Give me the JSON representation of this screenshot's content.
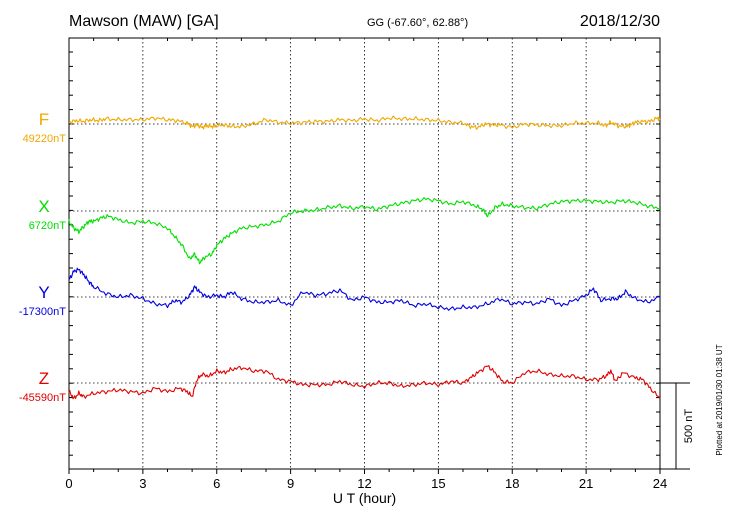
{
  "header": {
    "station": "Mawson (MAW)  [GA]",
    "coords": "GG (-67.60°,  62.88°)",
    "date": "2018/12/30"
  },
  "chart_data": {
    "type": "line",
    "xlabel": "U T (hour)",
    "x_ticks": [
      "0",
      "3",
      "6",
      "9",
      "12",
      "15",
      "18",
      "21",
      "24"
    ],
    "xlim": [
      0,
      24
    ],
    "grid": true,
    "scale_bar": "500 nT",
    "plotted_note": "Plotted at 2019/01/30 01:38 UT",
    "series": [
      {
        "name": "F",
        "baseline": "49220nT",
        "color": "#f0a800",
        "x": [
          0,
          0.3,
          0.6,
          0.9,
          1.2,
          1.5,
          2,
          2.5,
          3,
          3.5,
          4,
          4.4,
          4.8,
          5,
          5.2,
          5.4,
          5.6,
          5.8,
          6,
          6.3,
          6.6,
          7,
          7.5,
          8,
          8.5,
          9,
          9.5,
          10,
          10.5,
          11,
          11.5,
          12,
          12.5,
          13,
          13.5,
          14,
          14.5,
          15,
          15.5,
          16,
          16.3,
          16.6,
          16.9,
          17.2,
          17.5,
          18,
          18.5,
          19,
          19.5,
          20,
          20.5,
          21,
          21.5,
          21.8,
          22,
          22.3,
          22.6,
          22.8,
          23,
          23.3,
          23.6,
          23.9,
          24
        ],
        "y": [
          10,
          20,
          15,
          25,
          20,
          30,
          25,
          25,
          25,
          35,
          25,
          20,
          5,
          -15,
          -5,
          -20,
          -10,
          -15,
          -10,
          -5,
          -15,
          -15,
          0,
          25,
          10,
          5,
          10,
          15,
          15,
          25,
          20,
          30,
          20,
          35,
          30,
          30,
          25,
          20,
          10,
          5,
          -15,
          -20,
          0,
          -5,
          -5,
          -20,
          0,
          -5,
          -10,
          -10,
          5,
          5,
          5,
          -10,
          10,
          -10,
          -15,
          -5,
          10,
          15,
          15,
          35,
          30
        ]
      },
      {
        "name": "X",
        "baseline": "6720nT",
        "color": "#00e000",
        "x": [
          0,
          0.2,
          0.4,
          0.6,
          0.8,
          1,
          1.3,
          1.6,
          2,
          2.5,
          3,
          3.5,
          4,
          4.3,
          4.6,
          4.9,
          5.1,
          5.3,
          5.5,
          5.8,
          6,
          6.3,
          6.6,
          7,
          7.5,
          8,
          8.5,
          9,
          9.5,
          10,
          10.5,
          11,
          11.5,
          12,
          12.5,
          13,
          13.5,
          14,
          14.5,
          15,
          15.5,
          16,
          16.5,
          16.8,
          17,
          17.3,
          17.6,
          18,
          18.5,
          19,
          19.5,
          20,
          20.5,
          21,
          21.5,
          22,
          22.5,
          23,
          23.5,
          24
        ],
        "y": [
          -60,
          -100,
          -120,
          -90,
          -60,
          -60,
          -40,
          -30,
          -50,
          -70,
          -60,
          -70,
          -100,
          -150,
          -200,
          -280,
          -250,
          -300,
          -270,
          -250,
          -200,
          -160,
          -130,
          -100,
          -90,
          -80,
          -60,
          -10,
          0,
          5,
          20,
          30,
          15,
          25,
          10,
          30,
          45,
          60,
          70,
          60,
          40,
          55,
          30,
          10,
          -30,
          20,
          40,
          30,
          20,
          15,
          40,
          55,
          60,
          60,
          55,
          50,
          60,
          50,
          30,
          15
        ]
      },
      {
        "name": "Y",
        "baseline": "-17300nT",
        "color": "#0000e0",
        "x": [
          0,
          0.2,
          0.4,
          0.6,
          0.8,
          1,
          1.5,
          2,
          2.5,
          3,
          3.5,
          4,
          4.3,
          4.6,
          4.9,
          5.1,
          5.3,
          5.6,
          6,
          6.3,
          6.6,
          7,
          7.5,
          8,
          8.5,
          9,
          9.5,
          10,
          10.5,
          11,
          11.5,
          12,
          12.5,
          13,
          13.5,
          14,
          14.5,
          15,
          15.5,
          16,
          16.5,
          17,
          17.5,
          18,
          18.5,
          19,
          19.5,
          20,
          20.5,
          21,
          21.3,
          21.6,
          22,
          22.3,
          22.6,
          23,
          23.5,
          24
        ],
        "y": [
          100,
          150,
          160,
          130,
          90,
          60,
          20,
          0,
          10,
          -10,
          -40,
          -50,
          -20,
          -30,
          10,
          60,
          30,
          0,
          10,
          0,
          30,
          -10,
          -30,
          -30,
          -20,
          -50,
          30,
          10,
          20,
          40,
          -20,
          0,
          -30,
          -30,
          -20,
          -50,
          -40,
          -60,
          -70,
          -60,
          -60,
          -40,
          -10,
          -40,
          -30,
          -40,
          -10,
          -50,
          -20,
          10,
          50,
          -20,
          -10,
          -10,
          30,
          -10,
          -30,
          0
        ]
      },
      {
        "name": "Z",
        "baseline": "-45590nT",
        "color": "#e00000",
        "x": [
          0,
          0.2,
          0.4,
          0.6,
          1,
          1.5,
          2,
          2.5,
          3,
          3.5,
          4,
          4.5,
          4.8,
          5,
          5.2,
          5.4,
          5.7,
          6,
          6.3,
          6.6,
          7,
          7.5,
          8,
          8.5,
          9,
          9.5,
          10,
          10.5,
          11,
          11.5,
          12,
          12.5,
          13,
          13.5,
          14,
          14.5,
          15,
          15.5,
          16,
          16.3,
          16.6,
          17,
          17.3,
          17.6,
          18,
          18.5,
          19,
          19.5,
          20,
          20.5,
          21,
          21.5,
          21.8,
          22,
          22.2,
          22.5,
          23,
          23.3,
          23.6,
          24
        ],
        "y": [
          -50,
          -90,
          -60,
          -80,
          -60,
          -50,
          -40,
          -50,
          -60,
          -30,
          -50,
          -30,
          -50,
          -80,
          20,
          50,
          40,
          70,
          60,
          80,
          90,
          70,
          70,
          20,
          10,
          -10,
          -10,
          -10,
          10,
          -10,
          -20,
          0,
          0,
          -20,
          -10,
          0,
          -10,
          10,
          0,
          30,
          60,
          100,
          60,
          10,
          0,
          60,
          70,
          50,
          40,
          40,
          20,
          20,
          40,
          70,
          10,
          60,
          30,
          20,
          -30,
          -90
        ]
      }
    ]
  }
}
